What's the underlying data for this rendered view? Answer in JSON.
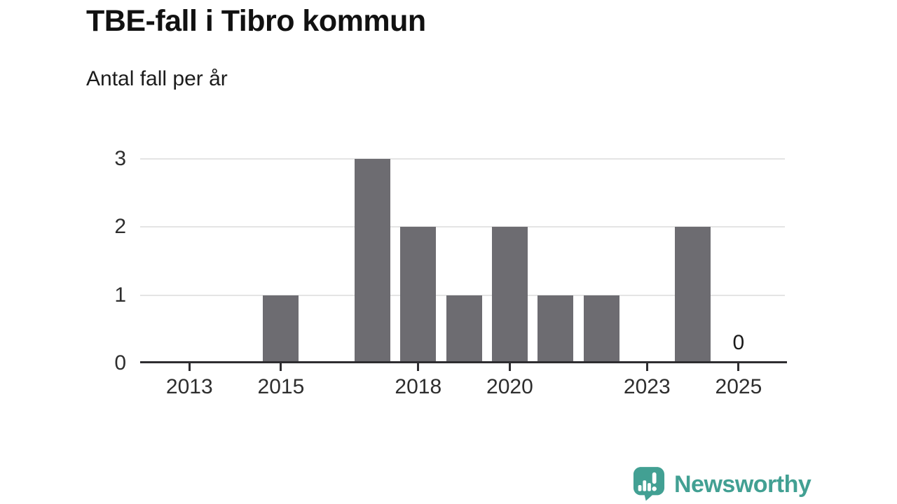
{
  "header": {
    "title": "TBE-fall i Tibro kommun",
    "subtitle": "Antal fall per år"
  },
  "branding": {
    "logo_text": "Newsworthy",
    "logo_icon": "newsworthy-speech-bubble-barchart-icon",
    "brand_color": "#42a093"
  },
  "chart_data": {
    "type": "bar",
    "title": "TBE-fall i Tibro kommun",
    "subtitle": "Antal fall per år",
    "x": [
      2012,
      2013,
      2014,
      2015,
      2016,
      2017,
      2018,
      2019,
      2020,
      2021,
      2022,
      2023,
      2024,
      2025
    ],
    "values": [
      0,
      0,
      0,
      1,
      0,
      3,
      2,
      1,
      2,
      1,
      1,
      0,
      2,
      0
    ],
    "x_tick_labels": [
      "2013",
      "2015",
      "2018",
      "2020",
      "2023",
      "2025"
    ],
    "y_ticks": [
      0,
      1,
      2,
      3
    ],
    "ylim": [
      0,
      3
    ],
    "xlabel": "",
    "ylabel": "Antal fall per år",
    "grid": "horizontal",
    "legend": "none",
    "bar_color": "#6d6c71",
    "axis_color": "#2e2d30",
    "grid_color": "#e4e4e4",
    "annotations": [
      {
        "x": 2025,
        "text": "0"
      }
    ]
  }
}
